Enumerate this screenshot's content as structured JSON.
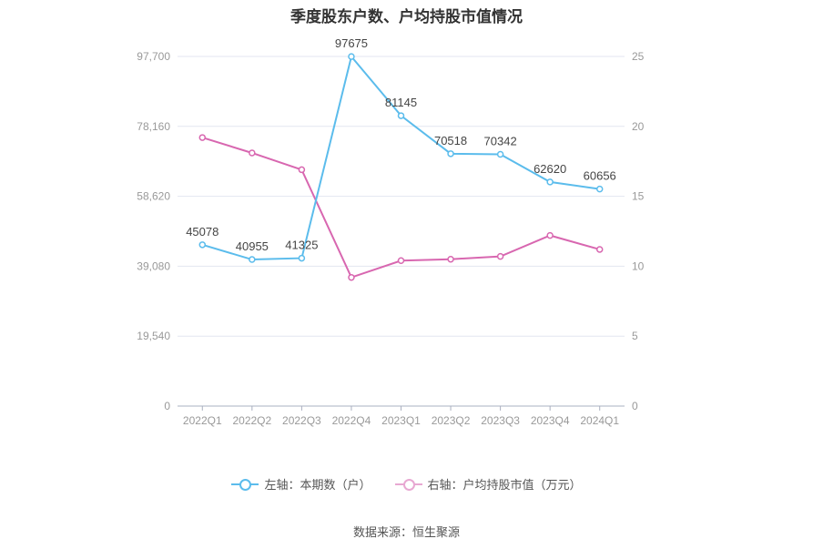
{
  "title": "季度股东户数、户均持股市值情况",
  "source": "数据来源：恒生聚源",
  "colors": {
    "left_series": "#5bbcec",
    "right_series": "#d867b0",
    "grid": "#e3e6f0",
    "axis": "#999999"
  },
  "chart_data": {
    "type": "line",
    "categories": [
      "2022Q1",
      "2022Q2",
      "2022Q3",
      "2022Q4",
      "2023Q1",
      "2023Q2",
      "2023Q3",
      "2023Q4",
      "2024Q1"
    ],
    "left_axis": {
      "min": 0,
      "max": 97700,
      "ticks": [
        0,
        19540,
        39080,
        58620,
        78160,
        97700
      ],
      "tick_labels": [
        "0",
        "19,540",
        "39,080",
        "58,620",
        "78,160",
        "97,700"
      ]
    },
    "right_axis": {
      "min": 0,
      "max": 25,
      "ticks": [
        0,
        5,
        10,
        15,
        20,
        25
      ],
      "tick_labels": [
        "0",
        "5",
        "10",
        "15",
        "20",
        "25"
      ]
    },
    "grid": true,
    "legend_position": "bottom",
    "series": [
      {
        "name": "左轴：本期数（户）",
        "axis": "left",
        "values": [
          45078,
          40955,
          41325,
          97675,
          81145,
          70518,
          70342,
          62620,
          60656
        ],
        "labels": [
          "45078",
          "40955",
          "41325",
          "97675",
          "81145",
          "70518",
          "70342",
          "62620",
          "60656"
        ]
      },
      {
        "name": "右轴：户均持股市值（万元）",
        "axis": "right",
        "values": [
          19.2,
          18.1,
          16.9,
          9.2,
          10.4,
          10.5,
          10.7,
          12.2,
          11.2
        ]
      }
    ]
  }
}
